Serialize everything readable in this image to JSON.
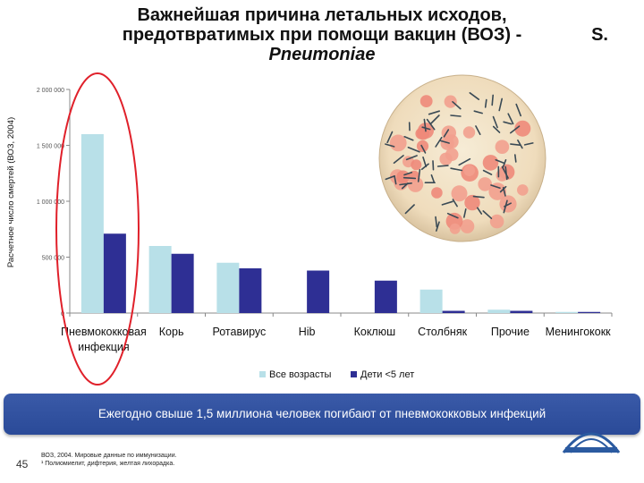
{
  "title": {
    "line1": "Важнейшая причина летальных исходов,",
    "line2": "предотвратимых при помощи вакцин (ВОЗ) -",
    "line2_right": "S.",
    "line3": "Pneumoniae"
  },
  "banner_text": "Ежегодно свыше 1,5 миллиона человек погибают от пневмококковых инфекций",
  "page_number": "45",
  "footnote": {
    "line1": "ВОЗ, 2004. Мировые данные по иммунизации.",
    "line2": "¹ Полиомиелит, дифтерия, желтая лихорадка."
  },
  "colors": {
    "all_ages": "#b8e0e8",
    "children": "#2e2f94",
    "highlight_ellipse": "#e0202a",
    "banner": "#2f4f9f"
  },
  "icons": {
    "micrograph": "bacteria-micrograph-icon",
    "logo": "organization-logo-icon"
  },
  "chart_data": {
    "type": "bar",
    "ylabel": "Расчетное число смертей (ВОЗ, 2004)",
    "ylim": [
      0,
      2000000
    ],
    "yticks": [
      {
        "value": 0,
        "label": "0"
      },
      {
        "value": 500000,
        "label": "500 000"
      },
      {
        "value": 1000000,
        "label": "1 000 000"
      },
      {
        "value": 1500000,
        "label": "1 500 000"
      },
      {
        "value": 2000000,
        "label": "2 000 000"
      }
    ],
    "categories": [
      "Пневмококковая инфекция",
      "Корь",
      "Ротавирус",
      "Hib",
      "Коклюш",
      "Столбняк",
      "Прочие",
      "Менингококк"
    ],
    "category_lines": [
      [
        "Пневмококковая",
        "инфекция"
      ],
      [
        "Корь"
      ],
      [
        "Ротавирус"
      ],
      [
        "Hib"
      ],
      [
        "Коклюш"
      ],
      [
        "Столбняк"
      ],
      [
        "Прочие"
      ],
      [
        "Менингококк"
      ]
    ],
    "series": [
      {
        "name": "Все возрасты",
        "values": [
          1600000,
          600000,
          450000,
          null,
          null,
          210000,
          30000,
          10000
        ]
      },
      {
        "name": "Дети <5 лет",
        "values": [
          710000,
          530000,
          400000,
          380000,
          290000,
          20000,
          20000,
          10000
        ]
      }
    ],
    "legend_position": "bottom",
    "grid": false
  }
}
